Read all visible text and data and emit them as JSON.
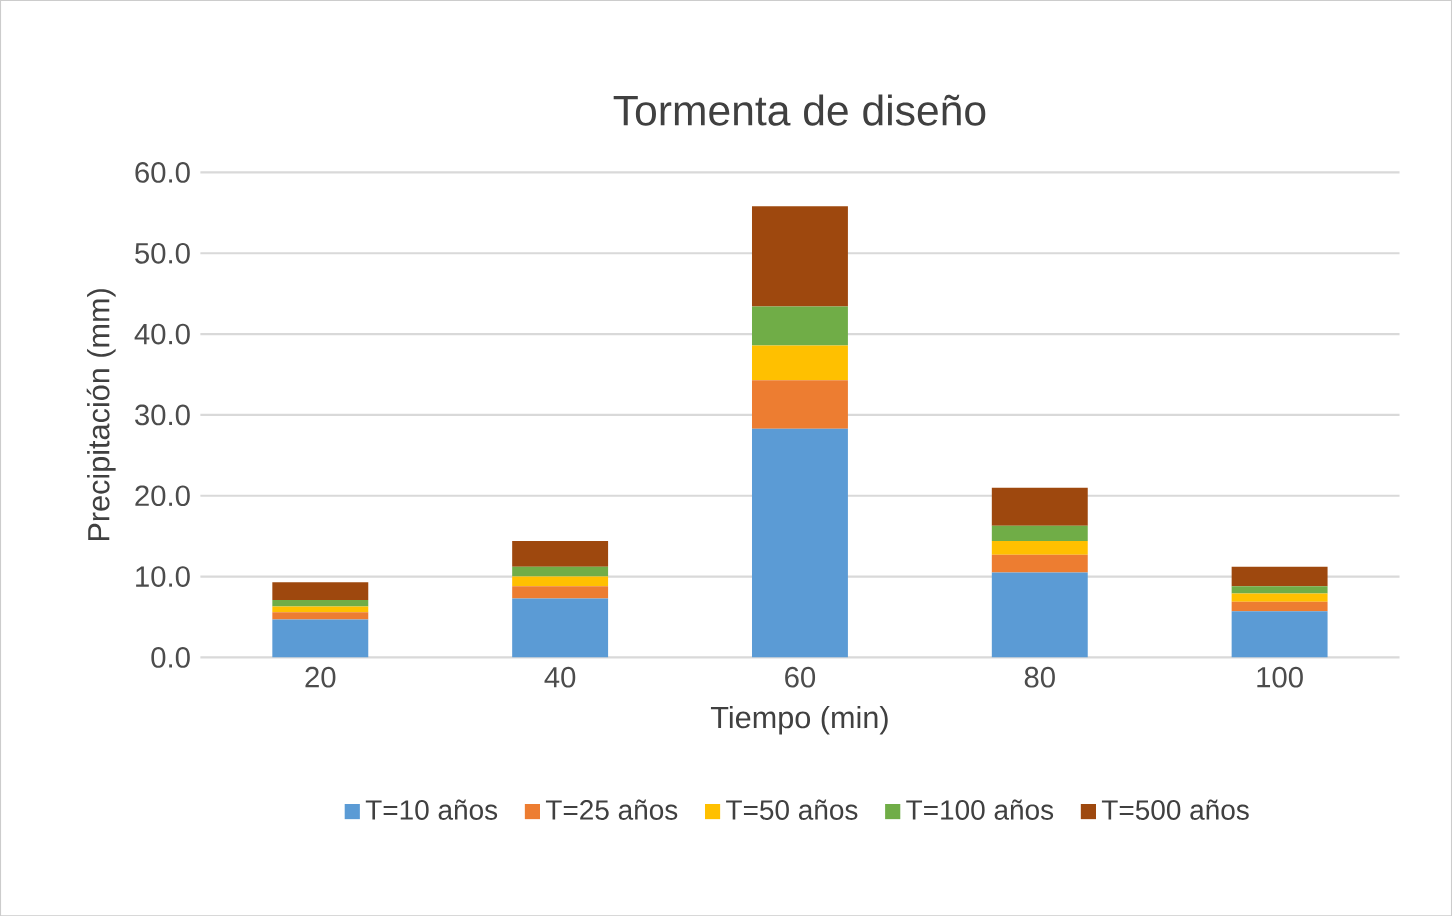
{
  "chart_data": {
    "type": "bar",
    "stacked": true,
    "title": "Tormenta de diseño",
    "xlabel": "Tiempo (min)",
    "ylabel": "Precipitación (mm)",
    "categories": [
      "20",
      "40",
      "60",
      "80",
      "100"
    ],
    "series": [
      {
        "name": "T=10 años",
        "color": "#5b9bd5",
        "values": [
          4.7,
          7.3,
          28.3,
          10.5,
          5.7
        ]
      },
      {
        "name": "T=25 años",
        "color": "#ed7d31",
        "values": [
          0.9,
          1.5,
          6.0,
          2.2,
          1.2
        ]
      },
      {
        "name": "T=50 años",
        "color": "#ffc000",
        "values": [
          0.7,
          1.2,
          4.3,
          1.7,
          1.0
        ]
      },
      {
        "name": "T=100 años",
        "color": "#70ad47",
        "values": [
          0.8,
          1.2,
          4.8,
          1.9,
          0.9
        ]
      },
      {
        "name": "T=500 años",
        "color": "#9e480e",
        "values": [
          2.2,
          3.2,
          12.4,
          4.7,
          2.4
        ]
      }
    ],
    "ylim": [
      0,
      60
    ],
    "yticks": [
      {
        "value": 0,
        "label": "0.0"
      },
      {
        "value": 10,
        "label": "10.0"
      },
      {
        "value": 20,
        "label": "20.0"
      },
      {
        "value": 30,
        "label": "30.0"
      },
      {
        "value": 40,
        "label": "40.0"
      },
      {
        "value": 50,
        "label": "50.0"
      },
      {
        "value": 60,
        "label": "60.0"
      }
    ],
    "grid": "y",
    "legend": "bottom"
  }
}
